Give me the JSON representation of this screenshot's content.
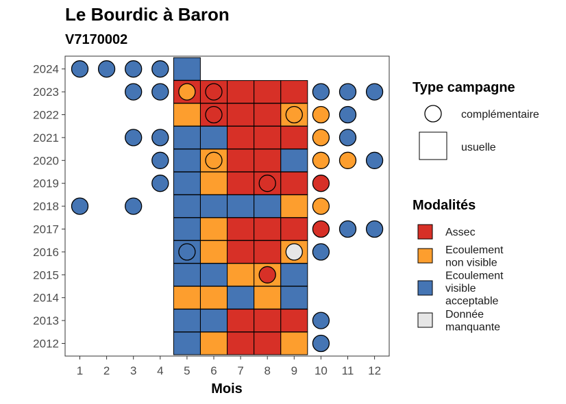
{
  "chart_data": {
    "type": "heatmap",
    "title": "Le Bourdic à Baron",
    "subtitle": "V7170002",
    "xlabel": "Mois",
    "ylabel": "",
    "x_ticks": [
      "1",
      "2",
      "3",
      "4",
      "5",
      "6",
      "7",
      "8",
      "9",
      "10",
      "11",
      "12"
    ],
    "y_ticks": [
      "2012",
      "2013",
      "2014",
      "2015",
      "2016",
      "2017",
      "2018",
      "2019",
      "2020",
      "2021",
      "2022",
      "2023",
      "2024"
    ],
    "colors": {
      "Assec": "#d73027",
      "Ecoulement non visible": "#fd9e2e",
      "Ecoulement visible acceptable": "#4575b4",
      "Donnée manquante": "#e6e6e6"
    },
    "legend_type": {
      "title": "Type campagne",
      "items": [
        {
          "key": "complementaire",
          "label": "complémentaire"
        },
        {
          "key": "usuelle",
          "label": "usuelle"
        }
      ]
    },
    "legend_mod": {
      "title": "Modalités",
      "items": [
        {
          "key": "Assec",
          "lines": [
            "Assec"
          ]
        },
        {
          "key": "Ecoulement non visible",
          "lines": [
            "Ecoulement",
            "non visible"
          ]
        },
        {
          "key": "Ecoulement visible acceptable",
          "lines": [
            "Ecoulement",
            "visible",
            "acceptable"
          ]
        },
        {
          "key": "Donnée manquante",
          "lines": [
            "Donnée",
            "manquante"
          ]
        }
      ]
    },
    "usuelle": [
      {
        "year": 2024,
        "values": {
          "5": "Ecoulement visible acceptable"
        }
      },
      {
        "year": 2023,
        "values": {
          "5": "Assec",
          "6": "Assec",
          "7": "Assec",
          "8": "Assec",
          "9": "Assec"
        }
      },
      {
        "year": 2022,
        "values": {
          "5": "Ecoulement non visible",
          "6": "Assec",
          "7": "Assec",
          "8": "Assec",
          "9": "Ecoulement non visible"
        }
      },
      {
        "year": 2021,
        "values": {
          "5": "Ecoulement visible acceptable",
          "6": "Ecoulement visible acceptable",
          "7": "Assec",
          "8": "Assec",
          "9": "Assec"
        }
      },
      {
        "year": 2020,
        "values": {
          "5": "Ecoulement visible acceptable",
          "6": "Ecoulement non visible",
          "7": "Assec",
          "8": "Assec",
          "9": "Ecoulement visible acceptable"
        }
      },
      {
        "year": 2019,
        "values": {
          "5": "Ecoulement visible acceptable",
          "6": "Ecoulement non visible",
          "7": "Assec",
          "8": "Assec",
          "9": "Assec"
        }
      },
      {
        "year": 2018,
        "values": {
          "5": "Ecoulement visible acceptable",
          "6": "Ecoulement visible acceptable",
          "7": "Ecoulement visible acceptable",
          "8": "Ecoulement visible acceptable",
          "9": "Ecoulement non visible"
        }
      },
      {
        "year": 2017,
        "values": {
          "5": "Ecoulement visible acceptable",
          "6": "Ecoulement non visible",
          "7": "Assec",
          "8": "Assec",
          "9": "Assec"
        }
      },
      {
        "year": 2016,
        "values": {
          "5": "Ecoulement visible acceptable",
          "6": "Ecoulement non visible",
          "7": "Assec",
          "8": "Assec",
          "9": "Ecoulement non visible"
        }
      },
      {
        "year": 2015,
        "values": {
          "5": "Ecoulement visible acceptable",
          "6": "Ecoulement visible acceptable",
          "7": "Ecoulement non visible",
          "8": "Ecoulement non visible",
          "9": "Ecoulement visible acceptable"
        }
      },
      {
        "year": 2014,
        "values": {
          "5": "Ecoulement non visible",
          "6": "Ecoulement non visible",
          "7": "Ecoulement visible acceptable",
          "8": "Ecoulement non visible",
          "9": "Ecoulement visible acceptable"
        }
      },
      {
        "year": 2013,
        "values": {
          "5": "Ecoulement visible acceptable",
          "6": "Ecoulement visible acceptable",
          "7": "Assec",
          "8": "Assec",
          "9": "Assec"
        }
      },
      {
        "year": 2012,
        "values": {
          "5": "Ecoulement visible acceptable",
          "6": "Ecoulement non visible",
          "7": "Assec",
          "8": "Assec",
          "9": "Ecoulement non visible"
        }
      }
    ],
    "complementaire": [
      {
        "year": 2024,
        "values": {
          "1": "Ecoulement visible acceptable",
          "2": "Ecoulement visible acceptable",
          "3": "Ecoulement visible acceptable",
          "4": "Ecoulement visible acceptable"
        }
      },
      {
        "year": 2023,
        "values": {
          "3": "Ecoulement visible acceptable",
          "4": "Ecoulement visible acceptable",
          "5": "Ecoulement non visible",
          "6": "Assec",
          "10": "Ecoulement visible acceptable",
          "11": "Ecoulement visible acceptable",
          "12": "Ecoulement visible acceptable"
        }
      },
      {
        "year": 2022,
        "values": {
          "6": "Assec",
          "9": "Ecoulement non visible",
          "10": "Ecoulement non visible",
          "11": "Ecoulement visible acceptable"
        }
      },
      {
        "year": 2021,
        "values": {
          "3": "Ecoulement visible acceptable",
          "4": "Ecoulement visible acceptable",
          "10": "Ecoulement non visible",
          "11": "Ecoulement visible acceptable"
        }
      },
      {
        "year": 2020,
        "values": {
          "4": "Ecoulement visible acceptable",
          "6": "Ecoulement non visible",
          "10": "Ecoulement non visible",
          "11": "Ecoulement non visible",
          "12": "Ecoulement visible acceptable"
        }
      },
      {
        "year": 2019,
        "values": {
          "4": "Ecoulement visible acceptable",
          "8": "Assec",
          "10": "Assec"
        }
      },
      {
        "year": 2018,
        "values": {
          "1": "Ecoulement visible acceptable",
          "3": "Ecoulement visible acceptable",
          "10": "Ecoulement non visible"
        }
      },
      {
        "year": 2017,
        "values": {
          "10": "Assec",
          "11": "Ecoulement visible acceptable",
          "12": "Ecoulement visible acceptable"
        }
      },
      {
        "year": 2016,
        "values": {
          "5": "Ecoulement visible acceptable",
          "9": "Donnée manquante",
          "10": "Ecoulement visible acceptable"
        }
      },
      {
        "year": 2015,
        "values": {
          "8": "Assec"
        }
      },
      {
        "year": 2013,
        "values": {
          "10": "Ecoulement visible acceptable"
        }
      },
      {
        "year": 2012,
        "values": {
          "10": "Ecoulement visible acceptable"
        }
      }
    ]
  }
}
